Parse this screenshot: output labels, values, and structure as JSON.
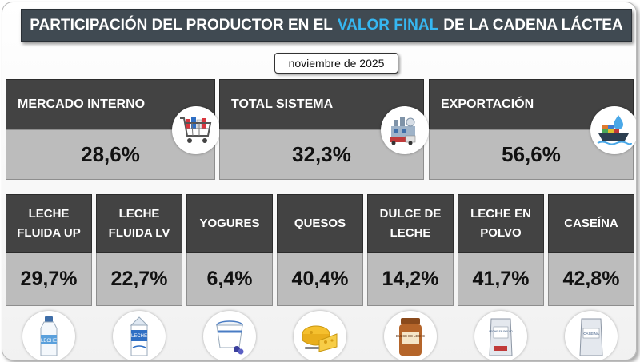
{
  "title": {
    "part1": "PARTICIPACIÓN DEL PRODUCTOR EN EL",
    "highlight": "VALOR FINAL",
    "part2": "DE LA CADENA LÁCTEA"
  },
  "date": "noviembre de 2025",
  "summary": [
    {
      "label": "MERCADO INTERNO",
      "value": "28,6%",
      "icon": "shopping-cart-icon"
    },
    {
      "label": "TOTAL SISTEMA",
      "value": "32,3%",
      "icon": "dairy-factory-icon"
    },
    {
      "label": "EXPORTACIÓN",
      "value": "56,6%",
      "icon": "cargo-ship-icon"
    }
  ],
  "products": [
    {
      "label": "LECHE FLUIDA UP",
      "value": "29,7%",
      "icon": "milk-bottle-icon"
    },
    {
      "label": "LECHE FLUIDA LV",
      "value": "22,7%",
      "icon": "milk-carton-icon"
    },
    {
      "label": "YOGURES",
      "value": "6,4%",
      "icon": "yogurt-cup-icon"
    },
    {
      "label": "QUESOS",
      "value": "40,4%",
      "icon": "cheese-icon"
    },
    {
      "label": "DULCE DE LECHE",
      "value": "14,2%",
      "icon": "dulce-de-leche-jar-icon",
      "icon_label": "DULCE DE LECHE"
    },
    {
      "label": "LECHE EN POLVO",
      "value": "41,7%",
      "icon": "powdered-milk-bag-icon",
      "icon_label": "LECHE EN POLVO"
    },
    {
      "label": "CASEÍNA",
      "value": "42,8%",
      "icon": "caseina-bag-icon",
      "icon_label": "CASEÍNA"
    }
  ],
  "colors": {
    "header_bg": "#404a52",
    "highlight": "#36b7f1",
    "card_head": "#434343",
    "card_value": "#bcbcbc"
  }
}
